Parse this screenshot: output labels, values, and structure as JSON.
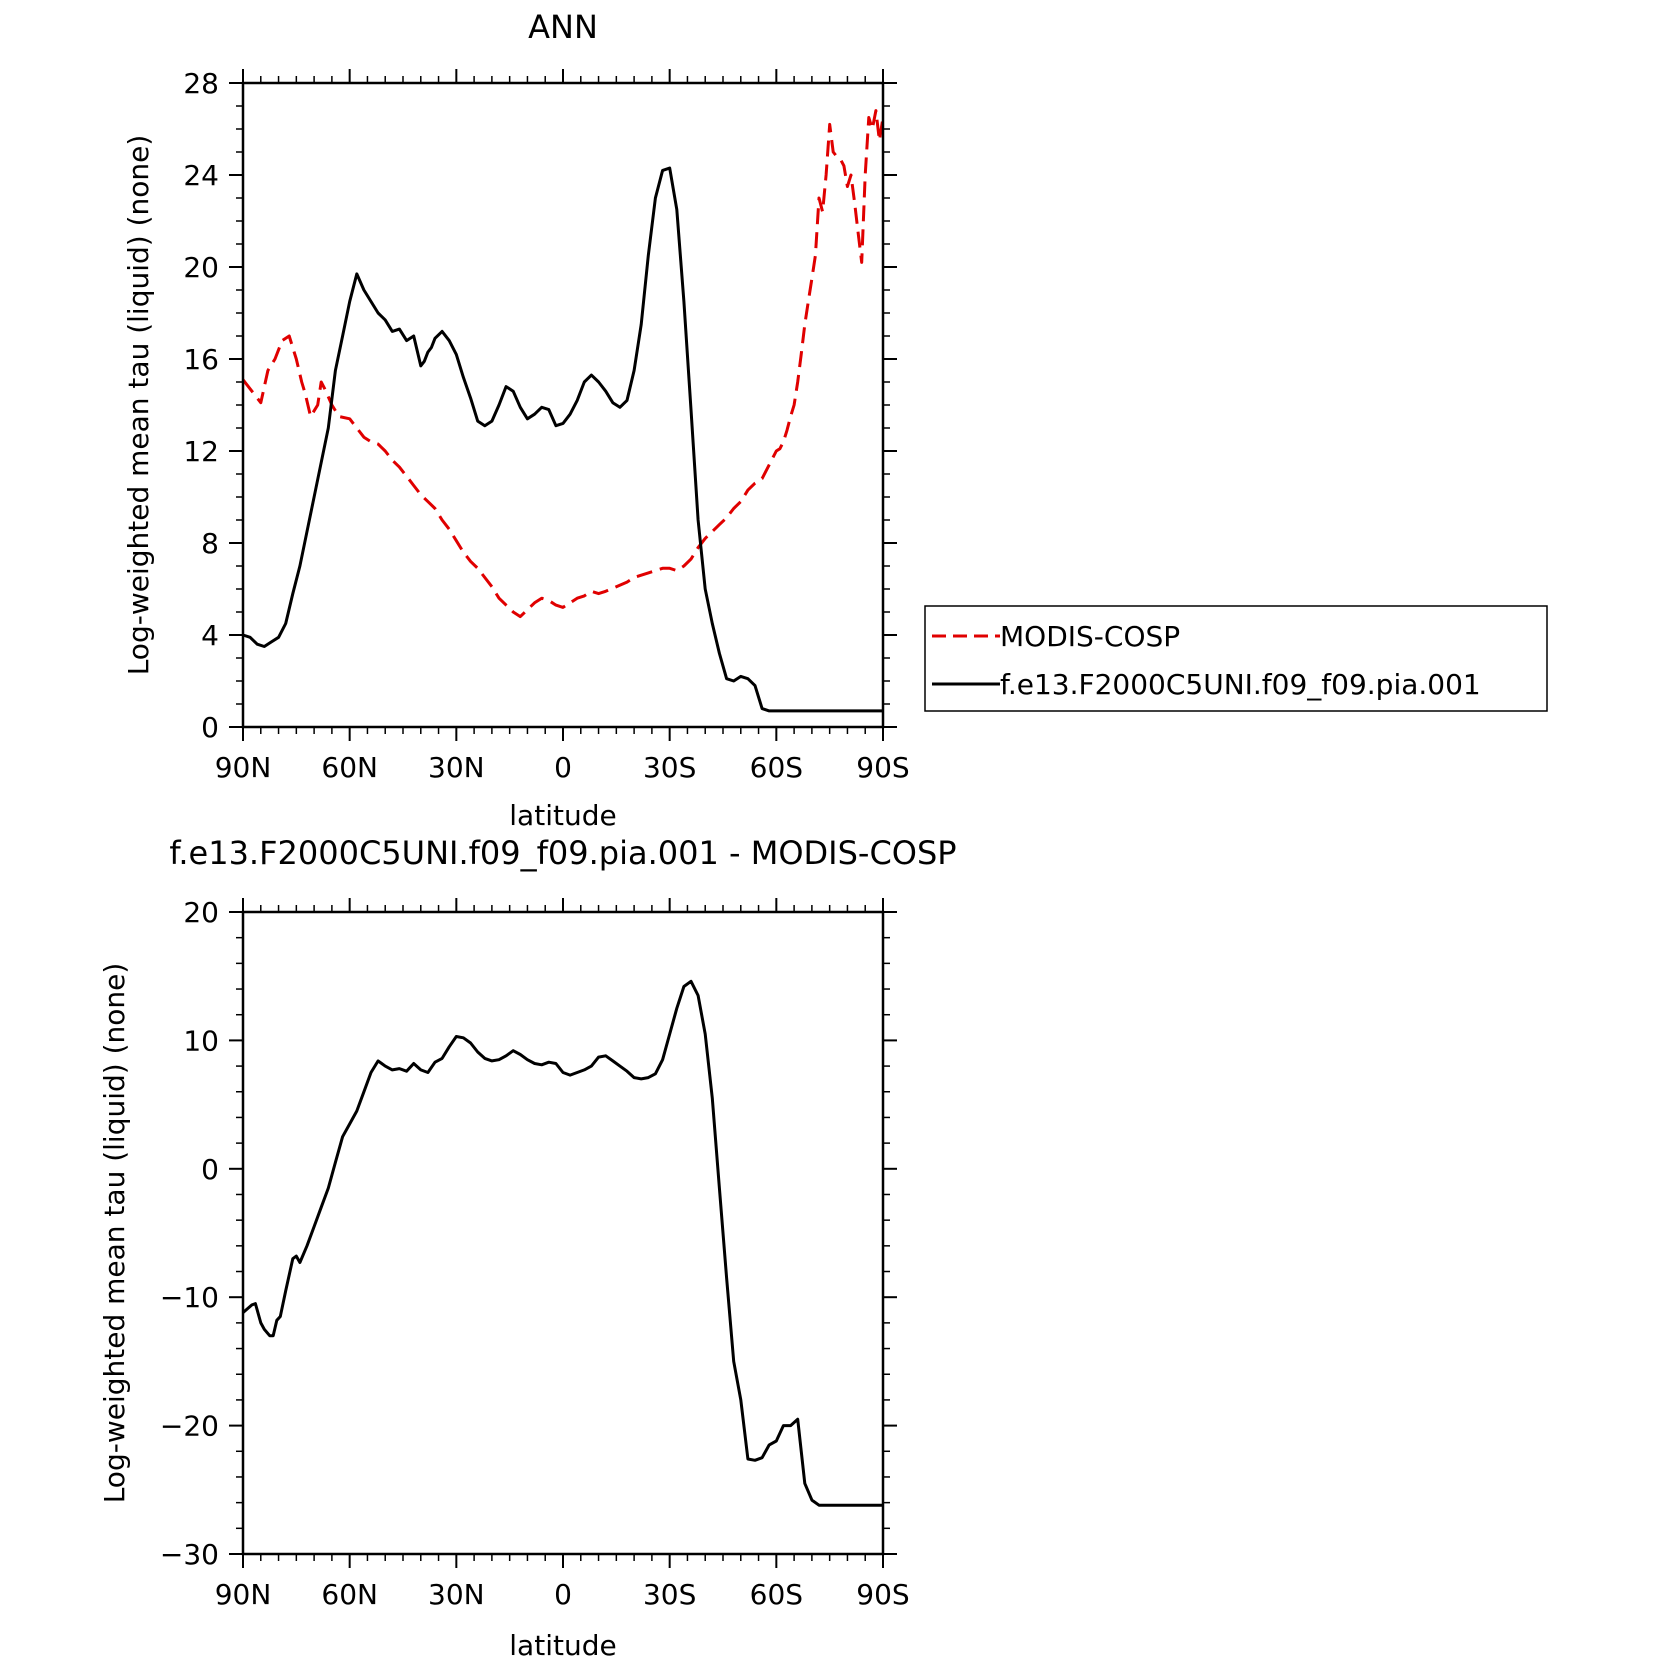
{
  "chart_data": [
    {
      "type": "line",
      "title": "ANN",
      "xlabel": "latitude",
      "ylabel": "Log-weighted mean tau (liquid) (none)",
      "xlim": [
        90,
        -90
      ],
      "ylim": [
        0,
        28
      ],
      "x_ticks": [
        90,
        60,
        30,
        0,
        -30,
        -60,
        -90
      ],
      "x_tick_labels": [
        "90N",
        "60N",
        "30N",
        "0",
        "30S",
        "60S",
        "90S"
      ],
      "y_ticks": [
        0,
        4,
        8,
        12,
        16,
        20,
        24,
        28
      ],
      "y_tick_labels": [
        "0",
        "4",
        "8",
        "12",
        "16",
        "20",
        "24",
        "28"
      ],
      "legend": "right",
      "series": [
        {
          "name": "MODIS-COSP",
          "color": "#e00000",
          "dash": "dashed",
          "x": [
            90,
            87,
            85,
            83,
            81,
            79,
            77,
            75,
            73.5,
            72.5,
            71,
            69,
            68,
            67,
            65,
            63,
            60,
            58,
            56,
            54,
            52,
            50,
            48,
            46,
            44,
            42,
            40,
            38,
            36,
            34,
            32,
            30,
            28,
            26,
            24,
            22,
            20,
            18,
            16,
            14,
            12,
            10,
            8,
            6,
            4,
            2,
            0,
            -2,
            -4,
            -6,
            -8,
            -10,
            -12,
            -15,
            -18,
            -20,
            -22,
            -24,
            -26,
            -28,
            -30,
            -32,
            -34,
            -36,
            -38,
            -40,
            -42,
            -44,
            -46,
            -48,
            -50,
            -52,
            -54,
            -56,
            -58,
            -60,
            -61,
            -62,
            -63,
            -64,
            -65,
            -66,
            -67,
            -68,
            -69,
            -70,
            -71,
            -72,
            -73,
            -74,
            -75,
            -76,
            -77,
            -78,
            -79,
            -80,
            -81,
            -82,
            -83,
            -84,
            -85,
            -86,
            -87,
            -88,
            -89,
            -90
          ],
          "values": [
            15.1,
            14.5,
            14.1,
            15.5,
            16.0,
            16.8,
            17.0,
            16.0,
            15.0,
            14.5,
            13.5,
            14.0,
            15.0,
            14.7,
            14.0,
            13.5,
            13.4,
            13.0,
            12.6,
            12.4,
            12.3,
            12.0,
            11.6,
            11.3,
            10.9,
            10.5,
            10.1,
            9.8,
            9.5,
            9.0,
            8.6,
            8.1,
            7.6,
            7.2,
            6.9,
            6.5,
            6.1,
            5.6,
            5.3,
            5.0,
            4.8,
            5.1,
            5.4,
            5.6,
            5.5,
            5.3,
            5.2,
            5.4,
            5.6,
            5.7,
            5.9,
            5.8,
            5.9,
            6.1,
            6.3,
            6.5,
            6.6,
            6.7,
            6.8,
            6.9,
            6.9,
            6.8,
            7.0,
            7.3,
            7.8,
            8.2,
            8.5,
            8.8,
            9.1,
            9.5,
            9.8,
            10.3,
            10.6,
            10.8,
            11.4,
            12.0,
            12.1,
            12.4,
            12.9,
            13.5,
            14.0,
            15.0,
            16.2,
            17.5,
            18.5,
            19.5,
            20.5,
            23.0,
            22.4,
            24.0,
            26.2,
            25.0,
            24.8,
            24.7,
            24.4,
            23.5,
            24.0,
            22.8,
            21.5,
            20.2,
            24.0,
            26.5,
            26.0,
            26.8,
            25.5,
            26.5
          ],
          "note": ""
        },
        {
          "name": "f.e13.F2000C5UNI.f09_f09.pia.001",
          "color": "#000000",
          "dash": "solid",
          "x": [
            90,
            88,
            86,
            84,
            82,
            80,
            78,
            76,
            74,
            72,
            70,
            68,
            66,
            64,
            62,
            60,
            58,
            56,
            54,
            52,
            50,
            48,
            46,
            44,
            42,
            40,
            39,
            38,
            37,
            36,
            34,
            32,
            30,
            28,
            26,
            24,
            22,
            20,
            18,
            16,
            14,
            12,
            10,
            8,
            6,
            4,
            2,
            0,
            -2,
            -4,
            -6,
            -8,
            -10,
            -12,
            -14,
            -16,
            -18,
            -20,
            -22,
            -24,
            -26,
            -28,
            -30,
            -32,
            -34,
            -36,
            -38,
            -40,
            -42,
            -44,
            -46,
            -48,
            -50,
            -52,
            -54,
            -56,
            -58,
            -60,
            -62,
            -64,
            -66,
            -68,
            -70,
            -72,
            -74,
            -76,
            -78,
            -80,
            -82,
            -84,
            -86,
            -87,
            -88,
            -89,
            -90
          ],
          "values": [
            4.0,
            3.9,
            3.6,
            3.5,
            3.7,
            3.9,
            4.5,
            5.8,
            7.0,
            8.5,
            10.0,
            11.5,
            13.0,
            15.5,
            17.0,
            18.5,
            19.7,
            19.0,
            18.5,
            18.0,
            17.7,
            17.2,
            17.3,
            16.8,
            17.0,
            15.7,
            15.9,
            16.3,
            16.5,
            16.9,
            17.2,
            16.8,
            16.2,
            15.2,
            14.3,
            13.3,
            13.1,
            13.3,
            14.0,
            14.8,
            14.6,
            13.9,
            13.4,
            13.6,
            13.9,
            13.8,
            13.1,
            13.2,
            13.6,
            14.2,
            15.0,
            15.3,
            15.0,
            14.6,
            14.1,
            13.9,
            14.2,
            15.5,
            17.5,
            20.5,
            23.0,
            24.2,
            24.3,
            22.5,
            18.5,
            13.8,
            9.0,
            6.0,
            4.5,
            3.2,
            2.1,
            2.0,
            2.2,
            2.1,
            1.8,
            0.8,
            0.7,
            0.7,
            0.7,
            0.7,
            0.7,
            0.7,
            0.7,
            0.7,
            0.7,
            0.7,
            0.7,
            0.7,
            0.7,
            0.7,
            0.7,
            0.7,
            0.7,
            0.7,
            0.7
          ],
          "note": ""
        }
      ]
    },
    {
      "type": "line",
      "title": "f.e13.F2000C5UNI.f09_f09.pia.001 - MODIS-COSP",
      "xlabel": "latitude",
      "ylabel": "Log-weighted mean tau (liquid) (none)",
      "xlim": [
        90,
        -90
      ],
      "ylim": [
        -30,
        20
      ],
      "x_ticks": [
        90,
        60,
        30,
        0,
        -30,
        -60,
        -90
      ],
      "x_tick_labels": [
        "90N",
        "60N",
        "30N",
        "0",
        "30S",
        "60S",
        "90S"
      ],
      "y_ticks": [
        -30,
        -20,
        -10,
        0,
        10,
        20
      ],
      "y_tick_labels": [
        "−30",
        "−20",
        "−10",
        "0",
        "10",
        "20"
      ],
      "series": [
        {
          "name": "",
          "color": "#000000",
          "dash": "solid",
          "x": [
            90,
            87.5,
            86.5,
            85,
            84,
            82.5,
            81.5,
            80.5,
            79.5,
            78,
            76,
            75,
            74,
            72,
            70,
            68,
            66,
            64,
            62,
            60,
            58,
            56,
            54,
            52,
            50,
            48,
            46,
            44,
            42,
            40,
            38,
            36,
            34,
            32,
            30,
            28,
            26,
            24,
            22,
            20,
            18,
            16,
            14,
            12,
            10,
            8,
            6,
            4,
            2,
            0,
            -2,
            -4,
            -6,
            -8,
            -10,
            -12,
            -14,
            -16,
            -18,
            -20,
            -22,
            -24,
            -26,
            -28,
            -30,
            -32,
            -34,
            -36,
            -38,
            -40,
            -42,
            -44,
            -46,
            -48,
            -50,
            -52,
            -54,
            -56,
            -58,
            -60,
            -62,
            -64,
            -66,
            -68,
            -70,
            -72,
            -74,
            -76,
            -78,
            -80,
            -82,
            -84,
            -86,
            -87,
            -88,
            -89,
            -90
          ],
          "values": [
            -11.2,
            -10.6,
            -10.5,
            -12.0,
            -12.5,
            -13.0,
            -13.0,
            -11.8,
            -11.5,
            -9.5,
            -7.0,
            -6.8,
            -7.3,
            -6.0,
            -4.5,
            -3.0,
            -1.5,
            0.5,
            2.5,
            3.5,
            4.5,
            6.0,
            7.5,
            8.4,
            8.0,
            7.7,
            7.8,
            7.6,
            8.2,
            7.7,
            7.5,
            8.3,
            8.6,
            9.5,
            10.3,
            10.2,
            9.8,
            9.1,
            8.6,
            8.4,
            8.5,
            8.8,
            9.2,
            8.9,
            8.5,
            8.2,
            8.1,
            8.3,
            8.2,
            7.5,
            7.3,
            7.5,
            7.7,
            8.0,
            8.7,
            8.8,
            8.4,
            8.0,
            7.6,
            7.1,
            7.0,
            7.1,
            7.4,
            8.5,
            10.5,
            12.5,
            14.2,
            14.6,
            13.5,
            10.5,
            5.5,
            -1.5,
            -8.5,
            -15.0,
            -18.0,
            -22.6,
            -22.7,
            -22.5,
            -21.5,
            -21.2,
            -20.0,
            -20.0,
            -19.5,
            -24.5,
            -25.8,
            -26.2,
            -26.2,
            -26.2,
            -26.2,
            -26.2,
            -26.2,
            -26.2,
            -26.2,
            -26.2,
            -26.2,
            -26.2,
            -26.2
          ],
          "note": ""
        }
      ]
    }
  ]
}
